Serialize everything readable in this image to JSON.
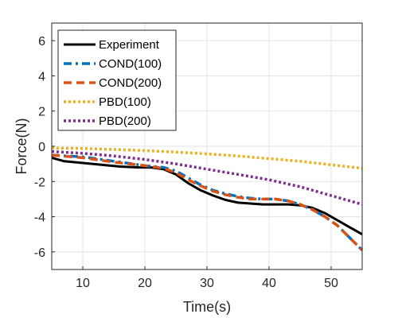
{
  "chart_data": {
    "type": "line",
    "xlabel": "Time(s)",
    "ylabel": "Force(N)",
    "xlim": [
      5,
      55
    ],
    "ylim": [
      -7,
      7
    ],
    "xticks": [
      10,
      20,
      30,
      40,
      50
    ],
    "yticks": [
      -6,
      -4,
      -2,
      0,
      2,
      4,
      6
    ],
    "grid": true,
    "legend_position": "top-left",
    "series": [
      {
        "name": "Experiment",
        "color": "#000000",
        "dash": "solid",
        "x": [
          5,
          7,
          10,
          13,
          16,
          19,
          21,
          23,
          25,
          27,
          29,
          31,
          33,
          35,
          37,
          39,
          41,
          43,
          45,
          47,
          49,
          51,
          53,
          55
        ],
        "y": [
          -0.65,
          -0.85,
          -0.95,
          -1.05,
          -1.15,
          -1.2,
          -1.2,
          -1.3,
          -1.6,
          -2.1,
          -2.5,
          -2.8,
          -3.05,
          -3.2,
          -3.25,
          -3.3,
          -3.3,
          -3.3,
          -3.35,
          -3.5,
          -3.8,
          -4.2,
          -4.6,
          -5.0
        ]
      },
      {
        "name": "COND(100)",
        "color": "#0072BD",
        "dash": "dashdot",
        "x": [
          5,
          10,
          15,
          20,
          23,
          25,
          27,
          29,
          31,
          33,
          35,
          37,
          39,
          41,
          43,
          45,
          47,
          49,
          51,
          53,
          55
        ],
        "y": [
          -0.5,
          -0.6,
          -0.85,
          -1.1,
          -1.2,
          -1.4,
          -1.8,
          -2.2,
          -2.5,
          -2.7,
          -2.85,
          -2.95,
          -3.0,
          -3.0,
          -3.1,
          -3.3,
          -3.6,
          -4.0,
          -4.5,
          -5.2,
          -5.9
        ]
      },
      {
        "name": "COND(200)",
        "color": "#D95319",
        "dash": "dashed",
        "x": [
          5,
          10,
          15,
          20,
          23,
          25,
          27,
          29,
          31,
          33,
          35,
          37,
          39,
          41,
          43,
          45,
          47,
          49,
          51,
          53,
          55
        ],
        "y": [
          -0.5,
          -0.65,
          -0.9,
          -1.1,
          -1.25,
          -1.5,
          -1.9,
          -2.25,
          -2.55,
          -2.75,
          -2.9,
          -3.0,
          -3.0,
          -3.0,
          -3.1,
          -3.3,
          -3.6,
          -4.0,
          -4.5,
          -5.2,
          -5.9
        ]
      },
      {
        "name": "PBD(100)",
        "color": "#EDB120",
        "dash": "dotted",
        "x": [
          5,
          10,
          15,
          20,
          25,
          30,
          35,
          40,
          45,
          50,
          55
        ],
        "y": [
          -0.1,
          -0.12,
          -0.18,
          -0.25,
          -0.33,
          -0.43,
          -0.55,
          -0.7,
          -0.85,
          -1.05,
          -1.25
        ]
      },
      {
        "name": "PBD(200)",
        "color": "#7E2F8E",
        "dash": "dotted",
        "x": [
          5,
          10,
          15,
          20,
          25,
          30,
          35,
          40,
          45,
          50,
          55
        ],
        "y": [
          -0.3,
          -0.4,
          -0.55,
          -0.75,
          -1.0,
          -1.3,
          -1.6,
          -1.9,
          -2.3,
          -2.8,
          -3.3
        ]
      }
    ]
  }
}
